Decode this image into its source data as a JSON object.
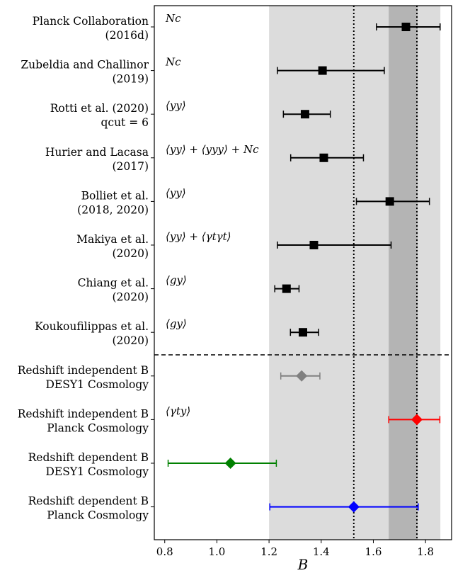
{
  "chart_data": {
    "type": "scatter",
    "xlabel": "B",
    "xlim": [
      0.76,
      1.9
    ],
    "xticks": [
      "0.8",
      "1.0",
      "1.2",
      "1.4",
      "1.6",
      "1.8"
    ],
    "xtick_values": [
      0.8,
      1.0,
      1.2,
      1.4,
      1.6,
      1.8
    ],
    "bands": [
      {
        "from": 1.2,
        "to": 1.857,
        "color": "#dcdcdc"
      },
      {
        "from": 1.659,
        "to": 1.77,
        "color": "#b4b4b4"
      }
    ],
    "vlines": [
      1.525,
      1.767
    ],
    "rows": [
      {
        "label": [
          "Planck Collaboration",
          "(2016d)"
        ],
        "annotation": "Nc",
        "x": 1.725,
        "xerr_low": 1.612,
        "xerr_high": 1.856,
        "marker": "square",
        "color": "#000000"
      },
      {
        "label": [
          "Zubeldia and Challinor",
          "(2019)"
        ],
        "annotation": "Nc",
        "x": 1.405,
        "xerr_low": 1.232,
        "xerr_high": 1.642,
        "marker": "square",
        "color": "#000000"
      },
      {
        "label": [
          "Rotti et al. (2020)",
          "qcut = 6"
        ],
        "annotation": "⟨yy⟩",
        "x": 1.338,
        "xerr_low": 1.255,
        "xerr_high": 1.435,
        "marker": "square",
        "color": "#000000"
      },
      {
        "label": [
          "Hurier and Lacasa",
          "(2017)"
        ],
        "annotation": "⟨yy⟩ + ⟨yyy⟩ + Nc",
        "x": 1.41,
        "xerr_low": 1.283,
        "xerr_high": 1.562,
        "marker": "square",
        "color": "#000000"
      },
      {
        "label": [
          "Bolliet et al.",
          "(2018, 2020)"
        ],
        "annotation": "⟨yy⟩",
        "x": 1.663,
        "xerr_low": 1.535,
        "xerr_high": 1.815,
        "marker": "square",
        "color": "#000000"
      },
      {
        "label": [
          "Makiya et al.",
          "(2020)"
        ],
        "annotation": "⟨yy⟩ + ⟨γtγt⟩",
        "x": 1.372,
        "xerr_low": 1.232,
        "xerr_high": 1.668,
        "marker": "square",
        "color": "#000000"
      },
      {
        "label": [
          "Chiang et al.",
          "(2020)"
        ],
        "annotation": "⟨gy⟩",
        "x": 1.267,
        "xerr_low": 1.222,
        "xerr_high": 1.315,
        "marker": "square",
        "color": "#000000"
      },
      {
        "label": [
          "Koukoufilippas et al.",
          "(2020)"
        ],
        "annotation": "⟨gy⟩",
        "x": 1.33,
        "xerr_low": 1.282,
        "xerr_high": 1.39,
        "marker": "square",
        "color": "#000000"
      },
      {
        "label": [
          "Redshift independent B",
          "DESY1 Cosmology"
        ],
        "annotation": "",
        "x": 1.325,
        "xerr_low": 1.245,
        "xerr_high": 1.395,
        "marker": "diamond",
        "color": "#808080"
      },
      {
        "label": [
          "Redshift independent B",
          "Planck Cosmology"
        ],
        "annotation": "⟨γty⟩",
        "x": 1.767,
        "xerr_low": 1.659,
        "xerr_high": 1.855,
        "marker": "diamond",
        "color": "#ff0000"
      },
      {
        "label": [
          "Redshift dependent B",
          "DESY1 Cosmology"
        ],
        "annotation": "",
        "x": 1.052,
        "xerr_low": 0.813,
        "xerr_high": 1.228,
        "marker": "diamond",
        "color": "#008000"
      },
      {
        "label": [
          "Redshift dependent B",
          "Planck Cosmology"
        ],
        "annotation": "",
        "x": 1.525,
        "xerr_low": 1.203,
        "xerr_high": 1.772,
        "marker": "diamond",
        "color": "#0000ff"
      }
    ],
    "separator_after_row": 7
  }
}
